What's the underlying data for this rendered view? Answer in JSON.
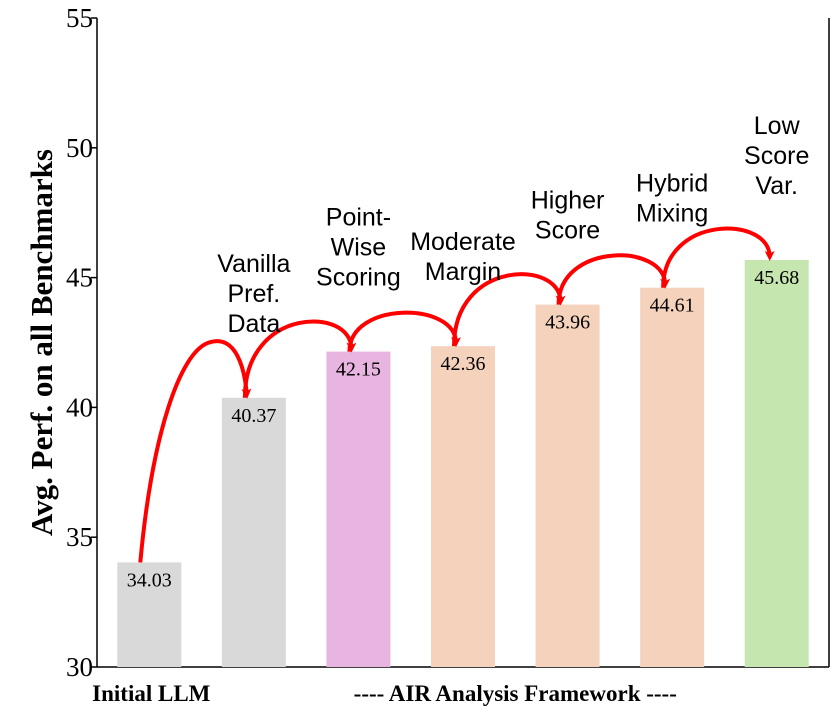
{
  "chart_data": {
    "type": "bar",
    "title": "",
    "xlabel": "",
    "ylabel": "Avg. Perf. on all Benchmarks",
    "ylim": [
      30,
      55
    ],
    "yticks": [
      30,
      35,
      40,
      45,
      50,
      55
    ],
    "grid": false,
    "categories": [
      "Initial LLM",
      "Vanilla Pref. Data",
      "Point-Wise Scoring",
      "Moderate Margin",
      "Higher Score",
      "Hybrid Mixing",
      "Low Score Var."
    ],
    "values": [
      34.03,
      40.37,
      42.15,
      42.36,
      43.96,
      44.61,
      45.68
    ],
    "value_labels": [
      "34.03",
      "40.37",
      "42.15",
      "42.36",
      "43.96",
      "44.61",
      "45.68"
    ],
    "step_labels": [
      [
        "Vanilla",
        "Pref.",
        "Data"
      ],
      [
        "Point-",
        "Wise",
        "Scoring"
      ],
      [
        "Moderate",
        "Margin"
      ],
      [
        "Higher",
        "Score"
      ],
      [
        "Hybrid",
        "Mixing"
      ],
      [
        "Low",
        "Score",
        "Var."
      ]
    ],
    "bar_colors": [
      "#d9d9d9",
      "#d9d9d9",
      "#e8b4e0",
      "#f5d2bc",
      "#f5d2bc",
      "#f5d2bc",
      "#c6e6b0"
    ],
    "arrow_color": "#ff0000",
    "group_labels": {
      "initial": "Initial LLM",
      "framework": "---- AIR Analysis Framework ----"
    }
  }
}
